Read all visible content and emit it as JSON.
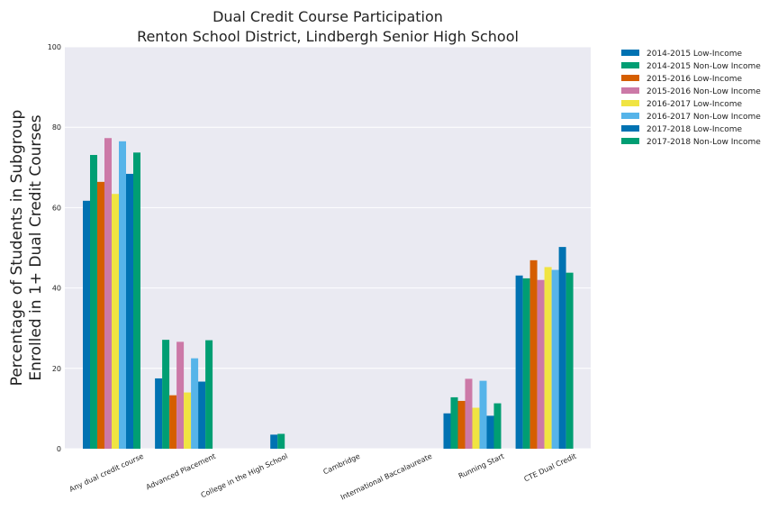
{
  "chart_data": {
    "type": "bar",
    "title": "Dual Credit Course Participation",
    "subtitle": "Renton School District, Lindbergh Senior High School",
    "ylabel": [
      "Percentage of Students in Subgroup",
      "Enrolled in 1+ Dual Credit Courses"
    ],
    "xlabel": "",
    "ylim": [
      0,
      100
    ],
    "yticks": [
      0,
      20,
      40,
      60,
      80,
      100
    ],
    "grid": true,
    "legend_position": "outside-top-right",
    "categories": [
      "Any dual credit course",
      "Advanced Placement",
      "College in the High School",
      "Cambridge",
      "International Baccalaureate",
      "Running Start",
      "CTE Dual Credit"
    ],
    "series": [
      {
        "name": "2014-2015 Low-Income",
        "color": "#0072B2",
        "values": [
          61.7,
          17.5,
          null,
          null,
          null,
          8.8,
          43.1
        ]
      },
      {
        "name": "2014-2015 Non-Low Income",
        "color": "#009E73",
        "values": [
          73.1,
          27.1,
          null,
          null,
          null,
          12.8,
          42.4
        ]
      },
      {
        "name": "2015-2016 Low-Income",
        "color": "#D55E00",
        "values": [
          66.4,
          13.3,
          null,
          null,
          null,
          11.9,
          46.9
        ]
      },
      {
        "name": "2015-2016 Non-Low Income",
        "color": "#CC79A7",
        "values": [
          77.3,
          26.6,
          null,
          null,
          null,
          17.4,
          42.0
        ]
      },
      {
        "name": "2016-2017 Low-Income",
        "color": "#F0E442",
        "values": [
          63.4,
          14.0,
          null,
          null,
          null,
          10.2,
          45.2
        ]
      },
      {
        "name": "2016-2017 Non-Low Income",
        "color": "#56B4E9",
        "values": [
          76.5,
          22.5,
          null,
          null,
          null,
          16.9,
          44.5
        ]
      },
      {
        "name": "2017-2018 Low-Income",
        "color": "#0072B2",
        "values": [
          68.4,
          16.7,
          3.5,
          null,
          null,
          8.2,
          50.2
        ]
      },
      {
        "name": "2017-2018 Non-Low Income",
        "color": "#009E73",
        "values": [
          73.7,
          27.0,
          3.7,
          null,
          null,
          11.3,
          43.8
        ]
      }
    ]
  }
}
